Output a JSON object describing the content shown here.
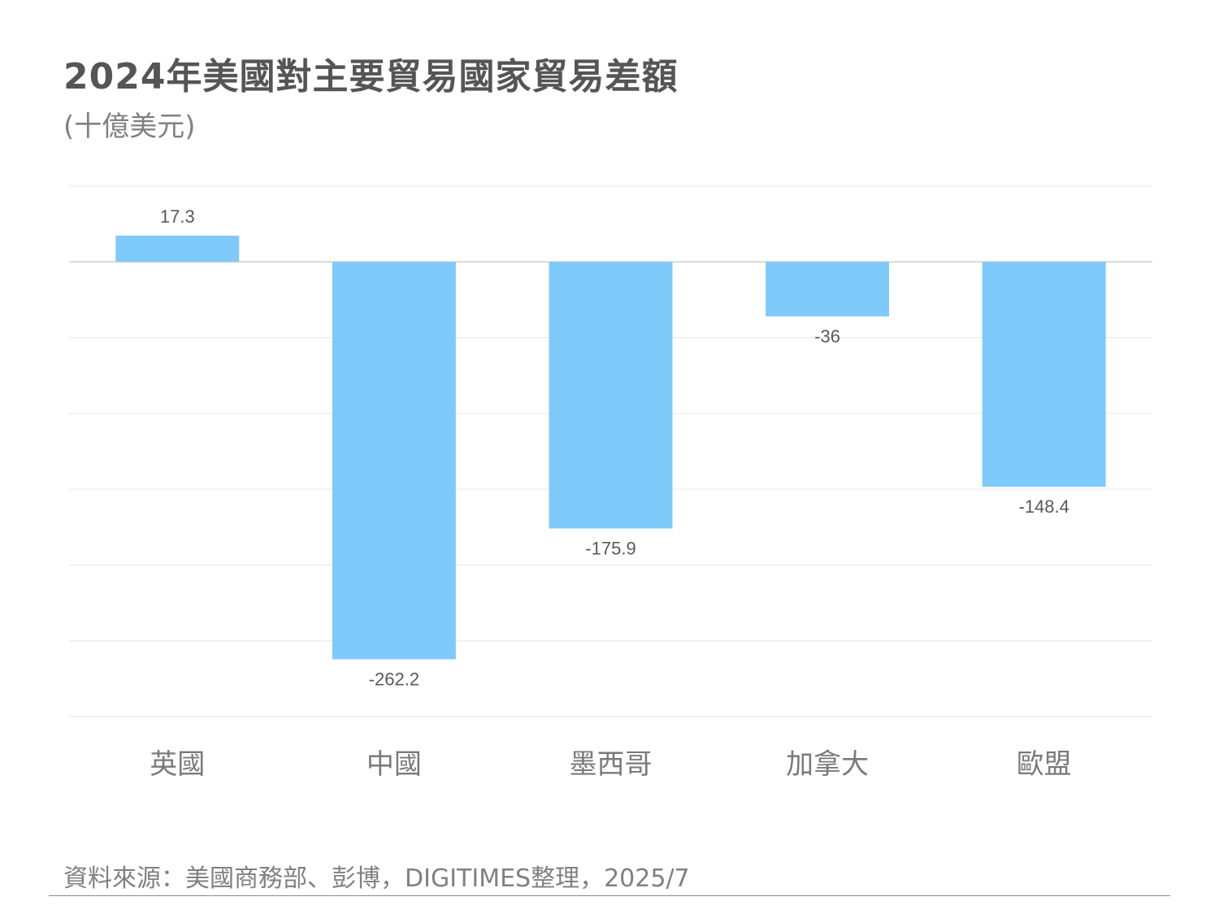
{
  "title": "2024年美國對主要貿易國家貿易差額",
  "subtitle": "(十億美元)",
  "source": "資料來源：美國商務部、彭博，DIGITIMES整理，2025/7",
  "colors": {
    "bar": "#7ecafa",
    "text": "#555555"
  },
  "chart_data": {
    "type": "bar",
    "categories": [
      "英國",
      "中國",
      "墨西哥",
      "加拿大",
      "歐盟"
    ],
    "values": [
      17.3,
      -262.2,
      -175.9,
      -36,
      -148.4
    ],
    "value_labels": [
      "17.3",
      "-262.2",
      "-175.9",
      "-36",
      "-148.4"
    ],
    "ylim": [
      -300,
      50
    ],
    "grid": true,
    "legend": "none"
  }
}
